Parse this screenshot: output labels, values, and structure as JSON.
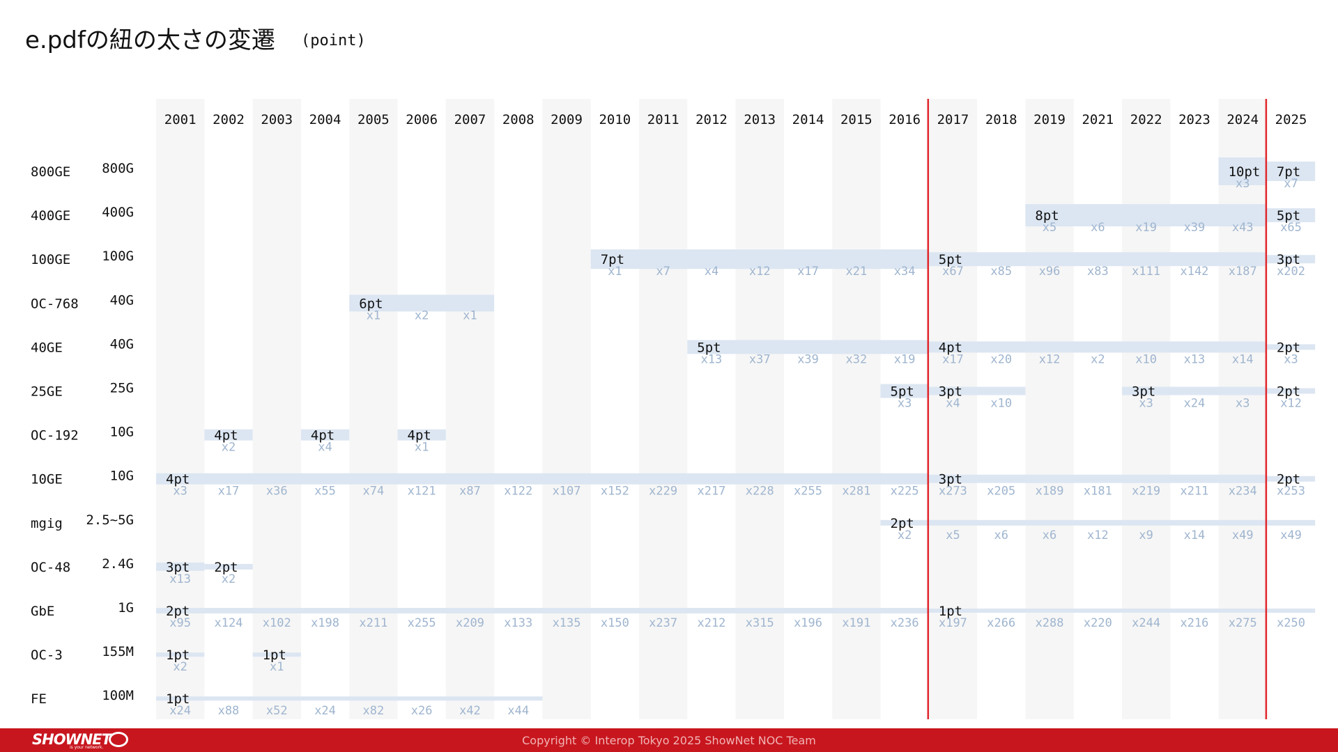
{
  "title": "e.pdfの紐の太さの変遷",
  "title_unit": "(point)",
  "footer": {
    "logo": "SHOWNET",
    "logo_sub": "is your network.",
    "copyright": "Copyright © Interop Tokyo 2025 ShowNet NOC Team"
  },
  "colors": {
    "bar": "#dce6f2",
    "column_band": "#f6f6f6",
    "count_text": "#9fb5cf",
    "marker_line": "#e0262b",
    "footer": "#c8161e"
  },
  "chart_data": {
    "type": "table",
    "years": [
      "2001",
      "2002",
      "2003",
      "2004",
      "2005",
      "2006",
      "2007",
      "2008",
      "2009",
      "2010",
      "2011",
      "2012",
      "2013",
      "2014",
      "2015",
      "2016",
      "2017",
      "2018",
      "2019",
      "2021",
      "2022",
      "2023",
      "2024",
      "2025"
    ],
    "marker_years": [
      "2017",
      "2025"
    ],
    "rows": [
      {
        "name": "800GE",
        "speed": "800G",
        "bars": [
          {
            "from": "2024",
            "to": "2024",
            "label": "10pt"
          },
          {
            "from": "2025",
            "to": "2025",
            "label": "7pt"
          }
        ],
        "counts": {
          "2024": "x3",
          "2025": "x7"
        }
      },
      {
        "name": "400GE",
        "speed": "400G",
        "bars": [
          {
            "from": "2019",
            "to": "2024",
            "label": "8pt"
          },
          {
            "from": "2025",
            "to": "2025",
            "label": "5pt"
          }
        ],
        "counts": {
          "2019": "x5",
          "2021": "x6",
          "2022": "x19",
          "2023": "x39",
          "2024": "x43",
          "2025": "x65"
        }
      },
      {
        "name": "100GE",
        "speed": "100G",
        "bars": [
          {
            "from": "2010",
            "to": "2016",
            "label": "7pt"
          },
          {
            "from": "2017",
            "to": "2024",
            "label": "5pt"
          },
          {
            "from": "2025",
            "to": "2025",
            "label": "3pt"
          }
        ],
        "counts": {
          "2010": "x1",
          "2011": "x7",
          "2012": "x4",
          "2013": "x12",
          "2014": "x17",
          "2015": "x21",
          "2016": "x34",
          "2017": "x67",
          "2018": "x85",
          "2019": "x96",
          "2021": "x83",
          "2022": "x111",
          "2023": "x142",
          "2024": "x187",
          "2025": "x202"
        }
      },
      {
        "name": "OC-768",
        "speed": "40G",
        "bars": [
          {
            "from": "2005",
            "to": "2007",
            "label": "6pt"
          }
        ],
        "counts": {
          "2005": "x1",
          "2006": "x2",
          "2007": "x1"
        }
      },
      {
        "name": "40GE",
        "speed": "40G",
        "bars": [
          {
            "from": "2012",
            "to": "2016",
            "label": "5pt"
          },
          {
            "from": "2017",
            "to": "2024",
            "label": "4pt"
          },
          {
            "from": "2025",
            "to": "2025",
            "label": "2pt"
          }
        ],
        "counts": {
          "2012": "x13",
          "2013": "x37",
          "2014": "x39",
          "2015": "x32",
          "2016": "x19",
          "2017": "x17",
          "2018": "x20",
          "2019": "x12",
          "2021": "x2",
          "2022": "x10",
          "2023": "x13",
          "2024": "x14",
          "2025": "x3"
        }
      },
      {
        "name": "25GE",
        "speed": "25G",
        "bars": [
          {
            "from": "2016",
            "to": "2016",
            "label": "5pt"
          },
          {
            "from": "2017",
            "to": "2018",
            "label": "3pt"
          },
          {
            "from": "2022",
            "to": "2024",
            "label": "3pt"
          },
          {
            "from": "2025",
            "to": "2025",
            "label": "2pt"
          }
        ],
        "counts": {
          "2016": "x3",
          "2017": "x4",
          "2018": "x10",
          "2022": "x3",
          "2023": "x24",
          "2024": "x3",
          "2025": "x12"
        }
      },
      {
        "name": "OC-192",
        "speed": "10G",
        "bars": [
          {
            "from": "2002",
            "to": "2002",
            "label": "4pt"
          },
          {
            "from": "2004",
            "to": "2004",
            "label": "4pt"
          },
          {
            "from": "2006",
            "to": "2006",
            "label": "4pt"
          }
        ],
        "counts": {
          "2002": "x2",
          "2004": "x4",
          "2006": "x1"
        }
      },
      {
        "name": "10GE",
        "speed": "10G",
        "bars": [
          {
            "from": "2001",
            "to": "2016",
            "label": "4pt"
          },
          {
            "from": "2017",
            "to": "2024",
            "label": "3pt"
          },
          {
            "from": "2025",
            "to": "2025",
            "label": "2pt"
          }
        ],
        "counts": {
          "2001": "x3",
          "2002": "x17",
          "2003": "x36",
          "2004": "x55",
          "2005": "x74",
          "2006": "x121",
          "2007": "x87",
          "2008": "x122",
          "2009": "x107",
          "2010": "x152",
          "2011": "x229",
          "2012": "x217",
          "2013": "x228",
          "2014": "x255",
          "2015": "x281",
          "2016": "x225",
          "2017": "x273",
          "2018": "x205",
          "2019": "x189",
          "2021": "x181",
          "2022": "x219",
          "2023": "x211",
          "2024": "x234",
          "2025": "x253"
        }
      },
      {
        "name": "mgig",
        "speed": "2.5~5G",
        "bars": [
          {
            "from": "2016",
            "to": "2025",
            "label": "2pt"
          }
        ],
        "counts": {
          "2016": "x2",
          "2017": "x5",
          "2018": "x6",
          "2019": "x6",
          "2021": "x12",
          "2022": "x9",
          "2023": "x14",
          "2024": "x49",
          "2025": "x49"
        }
      },
      {
        "name": "OC-48",
        "speed": "2.4G",
        "bars": [
          {
            "from": "2001",
            "to": "2001",
            "label": "3pt"
          },
          {
            "from": "2002",
            "to": "2002",
            "label": "2pt"
          }
        ],
        "counts": {
          "2001": "x13",
          "2002": "x2"
        }
      },
      {
        "name": "GbE",
        "speed": "1G",
        "bars": [
          {
            "from": "2001",
            "to": "2016",
            "label": "2pt"
          },
          {
            "from": "2017",
            "to": "2025",
            "label": "1pt"
          }
        ],
        "counts": {
          "2001": "x95",
          "2002": "x124",
          "2003": "x102",
          "2004": "x198",
          "2005": "x211",
          "2006": "x255",
          "2007": "x209",
          "2008": "x133",
          "2009": "x135",
          "2010": "x150",
          "2011": "x237",
          "2012": "x212",
          "2013": "x315",
          "2014": "x196",
          "2015": "x191",
          "2016": "x236",
          "2017": "x197",
          "2018": "x266",
          "2019": "x288",
          "2021": "x220",
          "2022": "x244",
          "2023": "x216",
          "2024": "x275",
          "2025": "x250"
        }
      },
      {
        "name": "OC-3",
        "speed": "155M",
        "bars": [
          {
            "from": "2001",
            "to": "2001",
            "label": "1pt"
          },
          {
            "from": "2003",
            "to": "2003",
            "label": "1pt"
          }
        ],
        "counts": {
          "2001": "x2",
          "2003": "x1"
        }
      },
      {
        "name": "FE",
        "speed": "100M",
        "bars": [
          {
            "from": "2001",
            "to": "2008",
            "label": "1pt"
          }
        ],
        "counts": {
          "2001": "x24",
          "2002": "x88",
          "2003": "x52",
          "2004": "x24",
          "2005": "x82",
          "2006": "x26",
          "2007": "x42",
          "2008": "x44"
        }
      }
    ]
  }
}
